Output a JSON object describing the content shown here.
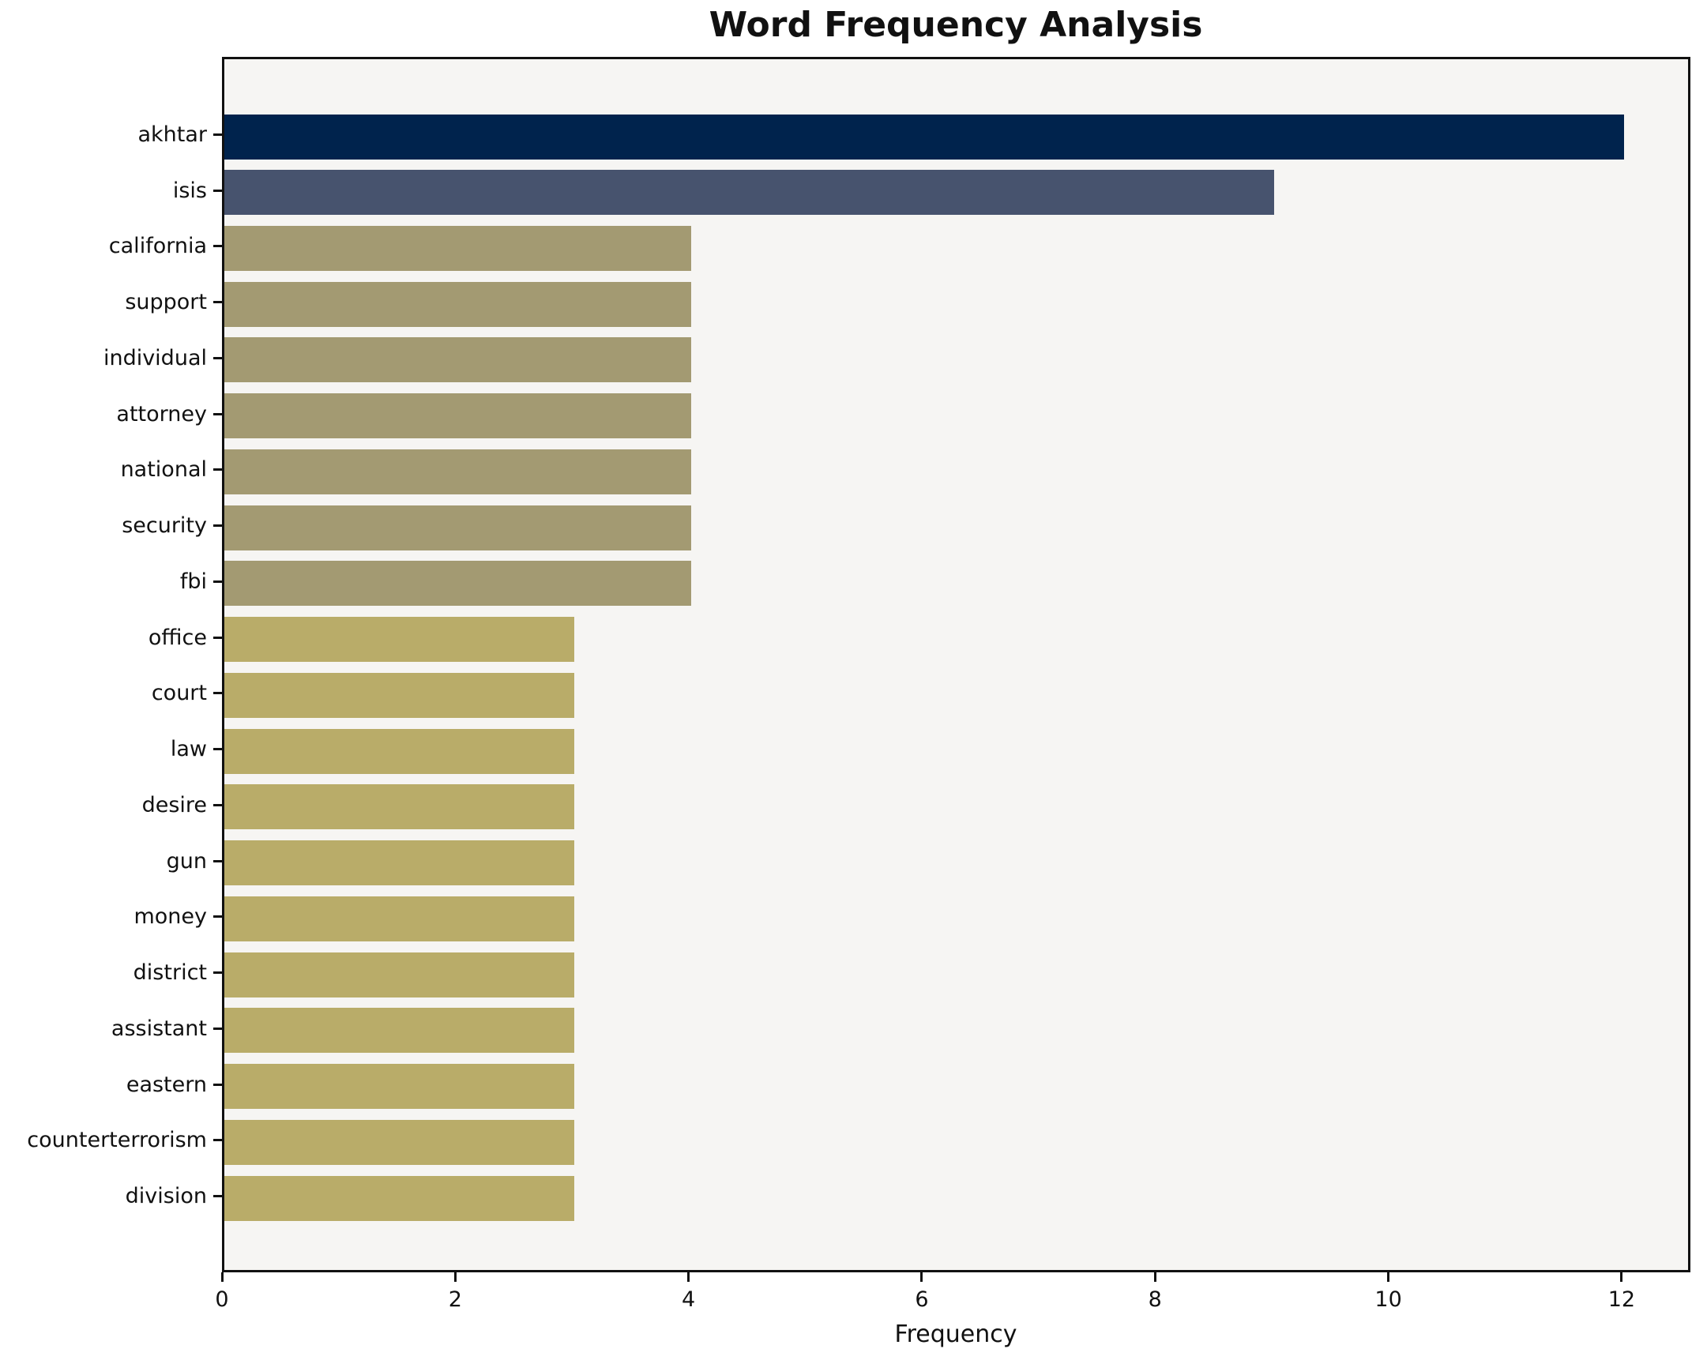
{
  "title": "Word Frequency Analysis",
  "chart_data": {
    "type": "bar",
    "orientation": "horizontal",
    "title": "Word Frequency Analysis",
    "xlabel": "Frequency",
    "ylabel": "",
    "categories": [
      "akhtar",
      "isis",
      "california",
      "support",
      "individual",
      "attorney",
      "national",
      "security",
      "fbi",
      "office",
      "court",
      "law",
      "desire",
      "gun",
      "money",
      "district",
      "assistant",
      "eastern",
      "counterterrorism",
      "division"
    ],
    "values": [
      12,
      9,
      4,
      4,
      4,
      4,
      4,
      4,
      4,
      3,
      3,
      3,
      3,
      3,
      3,
      3,
      3,
      3,
      3,
      3
    ],
    "bar_colors": [
      "#00234d",
      "#47536e",
      "#a39a72",
      "#a39a72",
      "#a39a72",
      "#a39a72",
      "#a39a72",
      "#a39a72",
      "#a39a72",
      "#b9ac69",
      "#b9ac69",
      "#b9ac69",
      "#b9ac69",
      "#b9ac69",
      "#b9ac69",
      "#b9ac69",
      "#b9ac69",
      "#b9ac69",
      "#b9ac69",
      "#b9ac69"
    ],
    "x_ticks": [
      0,
      2,
      4,
      6,
      8,
      10,
      12
    ],
    "xlim": [
      0,
      12.6
    ],
    "grid": false,
    "legend": false,
    "plot_bg": "#f6f5f3",
    "spine_color": "#111111",
    "text_color": "#111111"
  }
}
